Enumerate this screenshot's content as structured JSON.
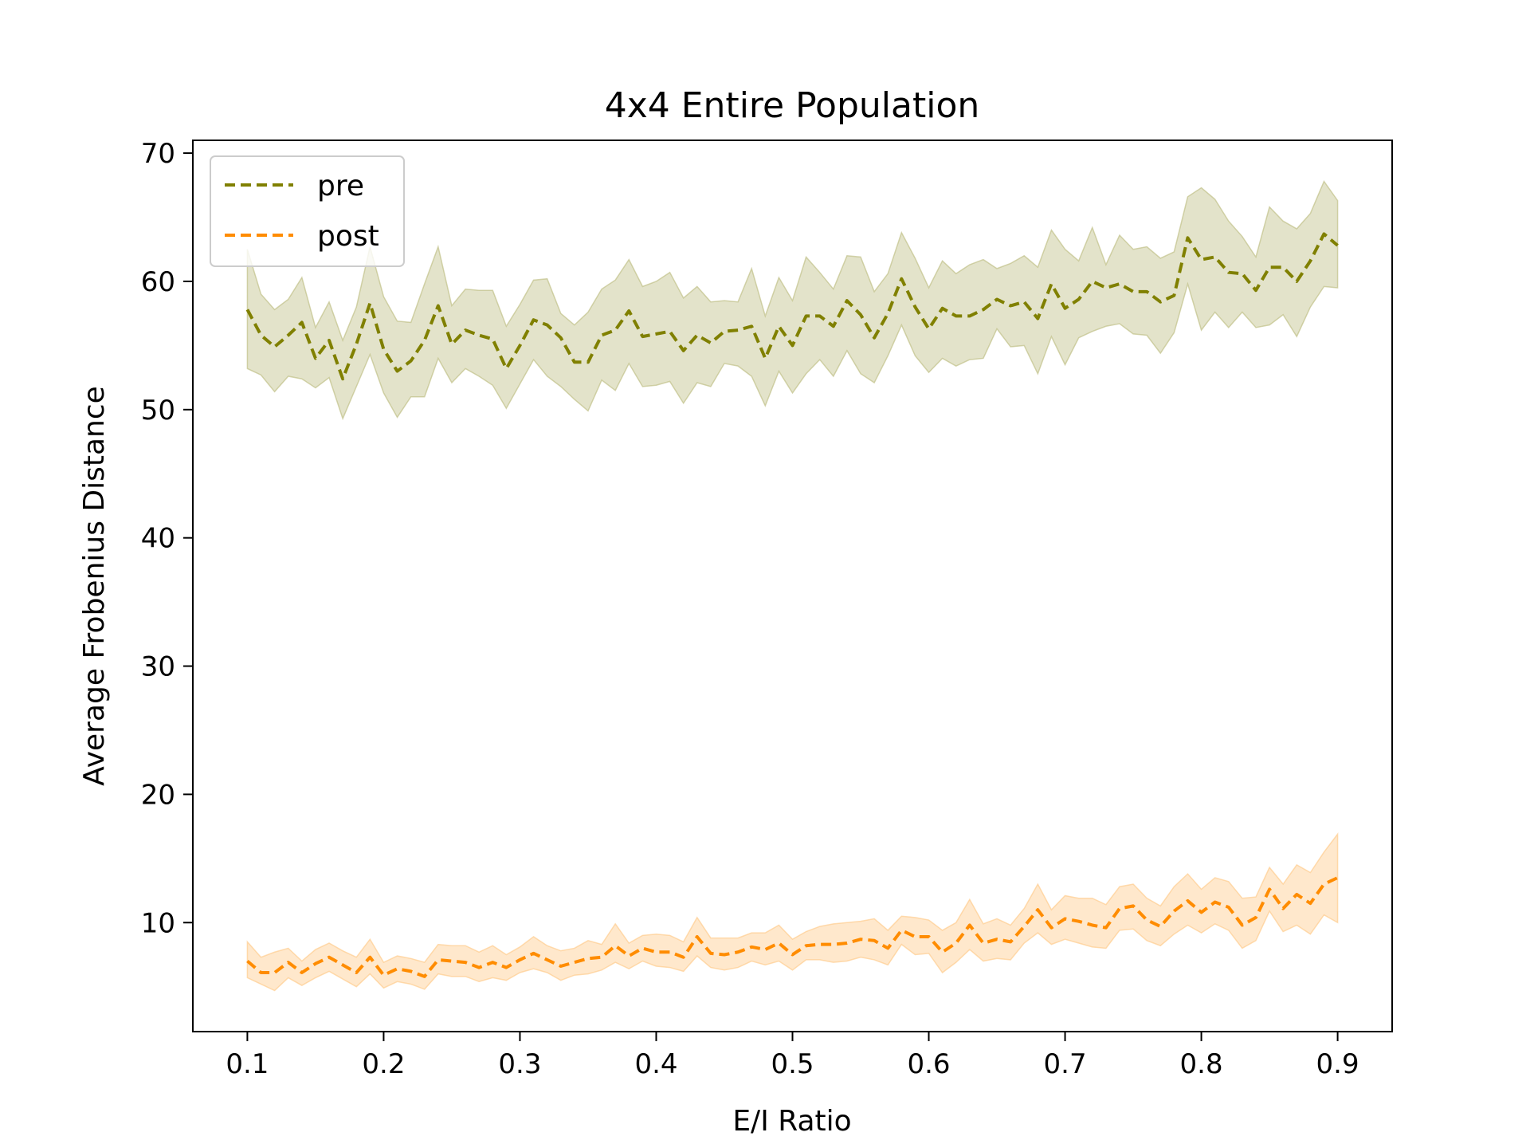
{
  "chart_data": {
    "type": "line",
    "title": "4x4 Entire Population",
    "xlabel": "E/I Ratio",
    "ylabel": "Average Frobenius Distance",
    "xlim": [
      0.06,
      0.94
    ],
    "ylim": [
      1.5,
      71
    ],
    "xticks": [
      0.1,
      0.2,
      0.3,
      0.4,
      0.5,
      0.6,
      0.7,
      0.8,
      0.9
    ],
    "xtick_labels": [
      "0.1",
      "0.2",
      "0.3",
      "0.4",
      "0.5",
      "0.6",
      "0.7",
      "0.8",
      "0.9"
    ],
    "yticks": [
      10,
      20,
      30,
      40,
      50,
      60,
      70
    ],
    "ytick_labels": [
      "10",
      "20",
      "30",
      "40",
      "50",
      "60",
      "70"
    ],
    "grid": false,
    "legend_position": "top-left",
    "x": [
      0.1,
      0.11,
      0.12,
      0.13,
      0.14,
      0.15,
      0.16,
      0.17,
      0.18,
      0.19,
      0.2,
      0.21,
      0.22,
      0.23,
      0.24,
      0.25,
      0.26,
      0.27,
      0.28,
      0.29,
      0.3,
      0.31,
      0.32,
      0.33,
      0.34,
      0.35,
      0.36,
      0.37,
      0.38,
      0.39,
      0.4,
      0.41,
      0.42,
      0.43,
      0.44,
      0.45,
      0.46,
      0.47,
      0.48,
      0.49,
      0.5,
      0.51,
      0.52,
      0.53,
      0.54,
      0.55,
      0.56,
      0.57,
      0.58,
      0.59,
      0.6,
      0.61,
      0.62,
      0.63,
      0.64,
      0.65,
      0.66,
      0.67,
      0.68,
      0.69,
      0.7,
      0.71,
      0.72,
      0.73,
      0.74,
      0.75,
      0.76,
      0.77,
      0.78,
      0.79,
      0.8,
      0.81,
      0.82,
      0.83,
      0.84,
      0.85,
      0.86,
      0.87,
      0.88,
      0.89,
      0.9
    ],
    "series": [
      {
        "name": "pre",
        "color": "#808000",
        "band_color": "#b9b97a",
        "values": [
          57.8,
          55.8,
          54.9,
          55.8,
          56.8,
          54.0,
          55.4,
          52.4,
          55.1,
          58.3,
          54.7,
          53.0,
          53.8,
          55.4,
          58.1,
          55.1,
          56.2,
          55.8,
          55.5,
          53.2,
          55.0,
          57.0,
          56.6,
          55.6,
          53.7,
          53.7,
          55.8,
          56.2,
          57.7,
          55.7,
          55.9,
          56.1,
          54.6,
          55.8,
          55.2,
          56.1,
          56.2,
          56.5,
          54.0,
          56.5,
          55.0,
          57.3,
          57.3,
          56.5,
          58.5,
          57.4,
          55.6,
          57.5,
          60.2,
          58.0,
          56.3,
          57.9,
          57.3,
          57.3,
          57.8,
          58.6,
          58.1,
          58.4,
          57.1,
          59.8,
          57.9,
          58.6,
          60.0,
          59.5,
          59.8,
          59.2,
          59.2,
          58.4,
          58.9,
          63.4,
          61.7,
          61.9,
          60.7,
          60.6,
          59.3,
          61.1,
          61.1,
          60.0,
          61.6,
          63.7,
          62.8
        ],
        "upper": [
          62.5,
          59.0,
          57.8,
          58.6,
          60.3,
          56.4,
          58.4,
          55.4,
          58.0,
          62.7,
          58.8,
          56.9,
          56.8,
          59.8,
          62.7,
          58.1,
          59.4,
          59.3,
          59.3,
          56.5,
          58.2,
          60.1,
          60.2,
          57.5,
          56.6,
          57.6,
          59.4,
          60.1,
          61.7,
          59.6,
          60.0,
          60.7,
          58.7,
          59.6,
          58.4,
          58.5,
          58.4,
          61.0,
          57.3,
          60.3,
          58.5,
          61.9,
          60.7,
          59.4,
          62.0,
          61.9,
          59.2,
          60.6,
          63.8,
          61.8,
          59.5,
          61.6,
          60.6,
          61.3,
          61.7,
          61.0,
          61.4,
          62.0,
          61.1,
          64.0,
          62.5,
          61.6,
          64.2,
          61.3,
          63.6,
          62.5,
          62.7,
          61.8,
          62.3,
          66.6,
          67.3,
          66.4,
          64.7,
          63.5,
          61.9,
          65.8,
          64.7,
          64.1,
          65.3,
          67.8,
          66.3
        ],
        "lower": [
          53.2,
          52.7,
          51.4,
          52.6,
          52.4,
          51.7,
          52.5,
          49.3,
          51.8,
          54.3,
          51.3,
          49.4,
          51.0,
          51.0,
          54.0,
          52.1,
          53.2,
          52.6,
          51.9,
          50.1,
          52.0,
          53.9,
          52.6,
          51.8,
          50.8,
          49.9,
          52.3,
          51.5,
          53.6,
          51.8,
          51.9,
          52.2,
          50.5,
          52.1,
          51.8,
          53.6,
          53.4,
          52.6,
          50.3,
          53.0,
          51.3,
          52.8,
          53.9,
          52.6,
          54.6,
          52.8,
          52.1,
          54.2,
          56.6,
          54.2,
          52.9,
          54.0,
          53.4,
          53.9,
          54.0,
          56.3,
          54.9,
          55.0,
          52.8,
          55.7,
          53.5,
          55.6,
          56.1,
          56.5,
          56.7,
          55.9,
          55.8,
          54.4,
          56.0,
          59.8,
          56.2,
          57.6,
          56.4,
          57.6,
          56.4,
          56.6,
          57.4,
          55.7,
          58.0,
          59.6,
          59.5
        ]
      },
      {
        "name": "post",
        "color": "#ff8c00",
        "band_color": "#ffc680",
        "values": [
          7.0,
          6.1,
          6.1,
          6.9,
          6.1,
          6.8,
          7.3,
          6.7,
          6.1,
          7.3,
          5.9,
          6.4,
          6.2,
          5.8,
          7.1,
          7.0,
          6.9,
          6.5,
          6.9,
          6.5,
          7.1,
          7.6,
          7.1,
          6.6,
          6.9,
          7.2,
          7.3,
          8.2,
          7.4,
          8.0,
          7.7,
          7.7,
          7.3,
          8.9,
          7.6,
          7.5,
          7.7,
          8.1,
          7.9,
          8.4,
          7.5,
          8.2,
          8.3,
          8.3,
          8.4,
          8.7,
          8.6,
          8.0,
          9.4,
          8.9,
          8.9,
          7.7,
          8.4,
          9.8,
          8.4,
          8.7,
          8.5,
          9.7,
          11.0,
          9.6,
          10.3,
          10.1,
          9.8,
          9.6,
          11.1,
          11.3,
          10.2,
          9.7,
          10.9,
          11.7,
          10.8,
          11.6,
          11.2,
          9.8,
          10.4,
          12.6,
          11.1,
          12.2,
          11.5,
          13.0,
          13.5
        ],
        "upper": [
          8.5,
          7.3,
          7.7,
          8.0,
          7.0,
          7.9,
          8.4,
          7.8,
          7.3,
          8.7,
          6.9,
          7.4,
          7.2,
          6.9,
          8.3,
          8.2,
          8.2,
          7.7,
          8.2,
          7.5,
          8.1,
          8.9,
          8.2,
          7.8,
          8.0,
          8.6,
          8.3,
          9.9,
          8.4,
          9.0,
          9.1,
          9.0,
          8.5,
          10.4,
          8.8,
          8.8,
          8.8,
          9.2,
          9.2,
          9.8,
          8.7,
          9.3,
          9.7,
          9.9,
          10.0,
          10.1,
          10.3,
          9.4,
          10.5,
          10.4,
          10.2,
          9.4,
          10.0,
          11.8,
          9.9,
          10.3,
          9.8,
          11.1,
          13.0,
          11.0,
          12.1,
          11.9,
          11.9,
          11.4,
          12.8,
          13.0,
          11.9,
          11.3,
          12.8,
          13.8,
          12.6,
          13.5,
          13.2,
          11.9,
          12.0,
          14.3,
          13.0,
          14.5,
          13.9,
          15.5,
          16.9
        ],
        "lower": [
          5.7,
          5.2,
          4.7,
          5.7,
          5.1,
          5.7,
          6.2,
          5.6,
          5.0,
          6.0,
          4.9,
          5.4,
          5.2,
          4.8,
          6.0,
          5.8,
          5.8,
          5.4,
          5.7,
          5.5,
          6.1,
          6.4,
          6.1,
          5.5,
          5.9,
          6.0,
          6.3,
          6.9,
          6.4,
          7.0,
          6.6,
          6.5,
          6.2,
          7.4,
          6.5,
          6.3,
          6.5,
          7.0,
          6.7,
          7.0,
          6.3,
          7.1,
          7.1,
          6.9,
          7.0,
          7.3,
          7.1,
          6.7,
          8.3,
          7.5,
          7.6,
          6.1,
          6.9,
          7.9,
          7.0,
          7.2,
          7.1,
          8.4,
          9.2,
          8.3,
          8.7,
          8.4,
          8.1,
          8.0,
          9.4,
          9.5,
          8.6,
          8.2,
          9.1,
          9.8,
          9.2,
          9.9,
          9.4,
          8.0,
          8.6,
          10.9,
          9.3,
          9.8,
          9.1,
          10.6,
          10.0
        ]
      }
    ]
  }
}
